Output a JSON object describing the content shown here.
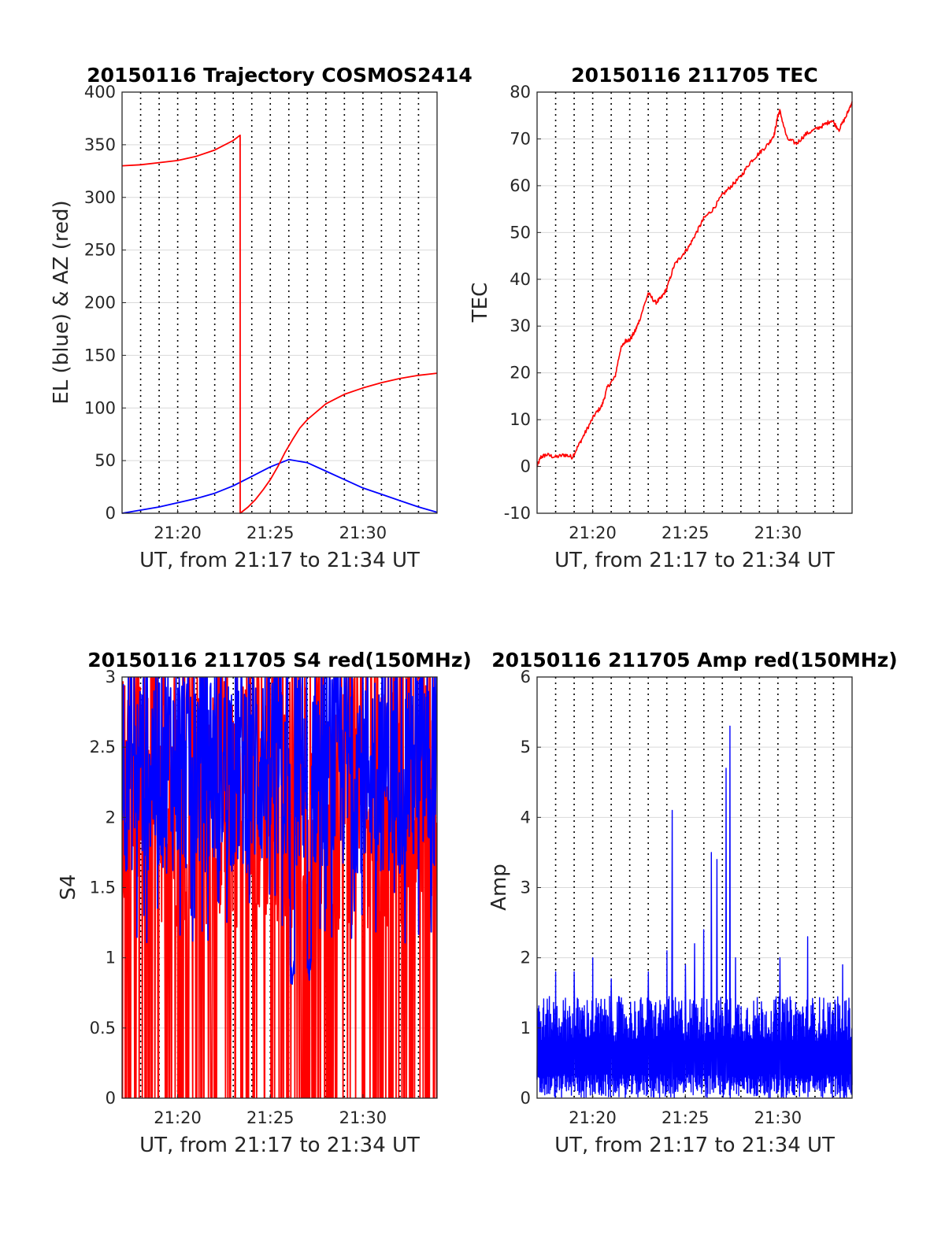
{
  "colors": {
    "el": "#0000ff",
    "az": "#ff0000",
    "s4_red": "#ff0000",
    "s4_blue": "#0000ff",
    "tec": "#ff0000",
    "amp": "#0000ff"
  },
  "charts": [
    {
      "id": "trajectory",
      "type": "line",
      "title": "20150116 Trajectory COSMOS2414",
      "xlabel": "UT, from 21:17 to 21:34 UT",
      "ylabel": "EL (blue) & AZ (red)",
      "xlim": [
        21.2833,
        21.5667
      ],
      "ylim": [
        0,
        400
      ],
      "xticks": [
        {
          "v": 21.3333,
          "label": "21:20"
        },
        {
          "v": 21.4167,
          "label": "21:25"
        },
        {
          "v": 21.5,
          "label": "21:30"
        }
      ],
      "yticks": [
        {
          "v": 0,
          "label": "0"
        },
        {
          "v": 50,
          "label": "50"
        },
        {
          "v": 100,
          "label": "100"
        },
        {
          "v": 150,
          "label": "150"
        },
        {
          "v": 200,
          "label": "200"
        },
        {
          "v": 250,
          "label": "250"
        },
        {
          "v": 300,
          "label": "300"
        },
        {
          "v": 350,
          "label": "350"
        },
        {
          "v": 400,
          "label": "400"
        }
      ],
      "grid": true
    },
    {
      "id": "tec",
      "type": "line",
      "title": "20150116 211705 TEC",
      "xlabel": "UT, from 21:17 to 21:34 UT",
      "ylabel": "TEC",
      "xlim": [
        21.2833,
        21.5667
      ],
      "ylim": [
        -10,
        80
      ],
      "xticks": [
        {
          "v": 21.3333,
          "label": "21:20"
        },
        {
          "v": 21.4167,
          "label": "21:25"
        },
        {
          "v": 21.5,
          "label": "21:30"
        }
      ],
      "yticks": [
        {
          "v": -10,
          "label": "-10"
        },
        {
          "v": 0,
          "label": "0"
        },
        {
          "v": 10,
          "label": "10"
        },
        {
          "v": 20,
          "label": "20"
        },
        {
          "v": 30,
          "label": "30"
        },
        {
          "v": 40,
          "label": "40"
        },
        {
          "v": 50,
          "label": "50"
        },
        {
          "v": 60,
          "label": "60"
        },
        {
          "v": 70,
          "label": "70"
        },
        {
          "v": 80,
          "label": "80"
        }
      ],
      "grid": true
    },
    {
      "id": "s4",
      "type": "line",
      "title": "20150116 211705 S4 red(150MHz)",
      "xlabel": "UT, from 21:17 to 21:34 UT",
      "ylabel": "S4",
      "xlim": [
        21.2833,
        21.5667
      ],
      "ylim": [
        0,
        3
      ],
      "xticks": [
        {
          "v": 21.3333,
          "label": "21:20"
        },
        {
          "v": 21.4167,
          "label": "21:25"
        },
        {
          "v": 21.5,
          "label": "21:30"
        }
      ],
      "yticks": [
        {
          "v": 0,
          "label": "0"
        },
        {
          "v": 0.5,
          "label": "0.5"
        },
        {
          "v": 1,
          "label": "1"
        },
        {
          "v": 1.5,
          "label": "1.5"
        },
        {
          "v": 2,
          "label": "2"
        },
        {
          "v": 2.5,
          "label": "2.5"
        },
        {
          "v": 3,
          "label": "3"
        }
      ],
      "grid": true
    },
    {
      "id": "amp",
      "type": "line",
      "title": "20150116 211705 Amp red(150MHz)",
      "xlabel": "UT, from 21:17 to 21:34 UT",
      "ylabel": "Amp",
      "xlim": [
        21.2833,
        21.5667
      ],
      "ylim": [
        0,
        6
      ],
      "xticks": [
        {
          "v": 21.3333,
          "label": "21:20"
        },
        {
          "v": 21.4167,
          "label": "21:25"
        },
        {
          "v": 21.5,
          "label": "21:30"
        }
      ],
      "yticks": [
        {
          "v": 0,
          "label": "0"
        },
        {
          "v": 1,
          "label": "1"
        },
        {
          "v": 2,
          "label": "2"
        },
        {
          "v": 3,
          "label": "3"
        },
        {
          "v": 4,
          "label": "4"
        },
        {
          "v": 5,
          "label": "5"
        },
        {
          "v": 6,
          "label": "6"
        }
      ],
      "grid": true
    }
  ],
  "chart_data": [
    {
      "type": "line",
      "title": "20150116 Trajectory COSMOS2414",
      "xlabel": "UT, from 21:17 to 21:34 UT",
      "ylabel": "EL (blue) & AZ (red)",
      "ylim": [
        0,
        400
      ],
      "series": [
        {
          "color": "#0000ff",
          "x": [
            21.2833,
            21.3,
            21.3167,
            21.3333,
            21.35,
            21.3667,
            21.3833,
            21.4,
            21.4167,
            21.4333,
            21.45,
            21.4667,
            21.4833,
            21.5,
            21.5167,
            21.5333,
            21.55,
            21.5667
          ],
          "y": [
            0,
            3,
            6,
            10,
            14,
            19,
            26,
            35,
            44,
            51,
            48,
            40,
            32,
            24,
            18,
            12,
            6,
            1
          ]
        },
        {
          "color": "#ff0000",
          "x": [
            21.2833,
            21.3,
            21.3167,
            21.3333,
            21.35,
            21.3667,
            21.3833,
            21.3895,
            21.3896,
            21.3967,
            21.4033,
            21.41,
            21.4167,
            21.4233,
            21.43,
            21.4367,
            21.4433,
            21.45,
            21.4667,
            21.4833,
            21.5,
            21.5167,
            21.5333,
            21.55,
            21.5667
          ],
          "y": [
            330,
            331,
            333,
            335,
            339,
            345,
            354,
            359,
            0,
            6,
            13,
            22,
            32,
            44,
            58,
            70,
            81,
            89,
            104,
            113,
            119,
            124,
            128,
            131,
            133
          ]
        }
      ]
    },
    {
      "type": "line",
      "title": "20150116 211705 TEC",
      "xlabel": "UT, from 21:17 to 21:34 UT",
      "ylabel": "TEC",
      "ylim": [
        -10,
        80
      ],
      "series": [
        {
          "color": "#ff0000",
          "x": [
            21.2833,
            21.2867,
            21.2917,
            21.3,
            21.3083,
            21.315,
            21.3217,
            21.3283,
            21.335,
            21.3417,
            21.3467,
            21.3533,
            21.3583,
            21.3633,
            21.3667,
            21.3717,
            21.375,
            21.3833,
            21.39,
            21.395,
            21.4,
            21.4067,
            21.4133,
            21.42,
            21.4267,
            21.4333,
            21.4417,
            21.45,
            21.4583,
            21.4667,
            21.475,
            21.4833,
            21.4917,
            21.4967,
            21.5,
            21.5017,
            21.5083,
            21.5167,
            21.525,
            21.5333,
            21.5417,
            21.5483,
            21.555,
            21.5617,
            21.5667
          ],
          "y": [
            0,
            2,
            2.5,
            2,
            2.5,
            2,
            5,
            8,
            11,
            13,
            17,
            19,
            25,
            27,
            27,
            29,
            31,
            37,
            35,
            36,
            38,
            43,
            45,
            47,
            50,
            53,
            55,
            58,
            60,
            62,
            65,
            67,
            69,
            71,
            75,
            76,
            70,
            69,
            71,
            72,
            73,
            74,
            72,
            75,
            78
          ]
        }
      ]
    },
    {
      "type": "line",
      "title": "20150116 211705 S4 red(150MHz)",
      "xlabel": "UT, from 21:17 to 21:34 UT",
      "ylabel": "S4",
      "ylim": [
        0,
        3
      ],
      "series": [
        {
          "color": "#ff0000",
          "x": [
            21.2833,
            21.5667
          ],
          "y_range": [
            0,
            3
          ]
        },
        {
          "color": "#0000ff",
          "x": [
            21.2833,
            21.5667
          ],
          "y_range": [
            0.8,
            3
          ]
        }
      ]
    },
    {
      "type": "line",
      "title": "20150116 211705 Amp red(150MHz)",
      "xlabel": "UT, from 21:17 to 21:34 UT",
      "ylabel": "Amp",
      "ylim": [
        0,
        6
      ],
      "series": [
        {
          "color": "#0000ff",
          "peaks": {
            "x": [
              21.3,
              21.3167,
              21.3333,
              21.35,
              21.3833,
              21.4,
              21.405,
              21.4167,
              21.425,
              21.4333,
              21.44,
              21.445,
              21.4533,
              21.4567,
              21.4617,
              21.5017,
              21.5267,
              21.5583
            ],
            "y": [
              1.8,
              1.8,
              2.0,
              1.7,
              1.8,
              2.1,
              4.1,
              1.9,
              2.2,
              2.4,
              3.5,
              3.4,
              4.7,
              5.3,
              2.0,
              2.0,
              2.3,
              1.9
            ]
          }
        }
      ]
    }
  ]
}
